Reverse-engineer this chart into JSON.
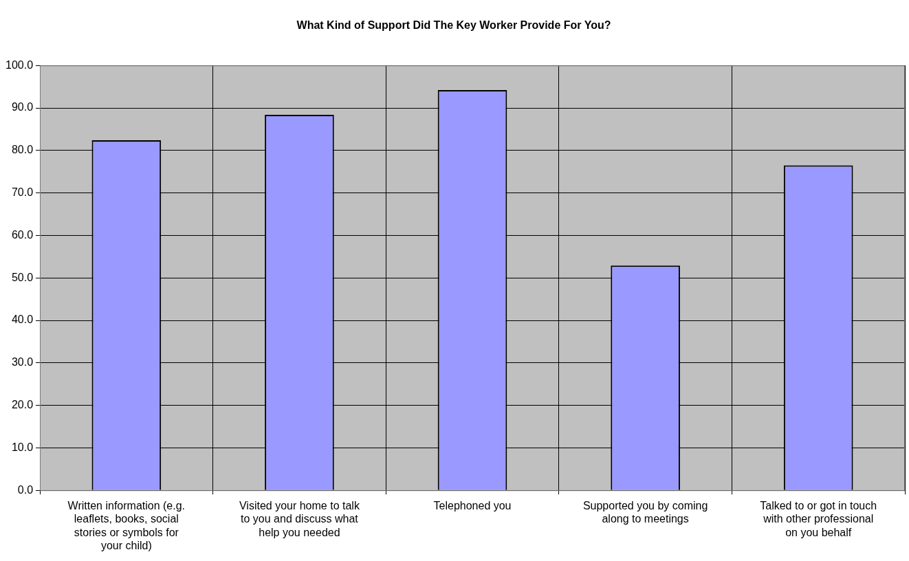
{
  "chart_data": {
    "type": "bar",
    "title": "What Kind of Support Did The Key Worker Provide For You?",
    "categories": [
      "Written information (e.g. leaflets, books, social stories or symbols for your child)",
      "Visited your home to talk to you and discuss what help you needed",
      "Telephoned you",
      "Supported you by coming along to meetings",
      "Talked to or got in touch with other professional on you behalf"
    ],
    "values": [
      82.4,
      88.4,
      94.2,
      52.9,
      76.5
    ],
    "color": "#9999ff",
    "ylim": [
      0,
      100
    ],
    "yticks": [
      {
        "value": 0,
        "label": "0.0"
      },
      {
        "value": 10,
        "label": "10.0"
      },
      {
        "value": 20,
        "label": "20.0"
      },
      {
        "value": 30,
        "label": "30.0"
      },
      {
        "value": 40,
        "label": "40.0"
      },
      {
        "value": 50,
        "label": "50.0"
      },
      {
        "value": 60,
        "label": "60.0"
      },
      {
        "value": 70,
        "label": "70.0"
      },
      {
        "value": 80,
        "label": "80.0"
      },
      {
        "value": 90,
        "label": "90.0"
      },
      {
        "value": 100,
        "label": "100.0"
      }
    ],
    "grid": true
  }
}
